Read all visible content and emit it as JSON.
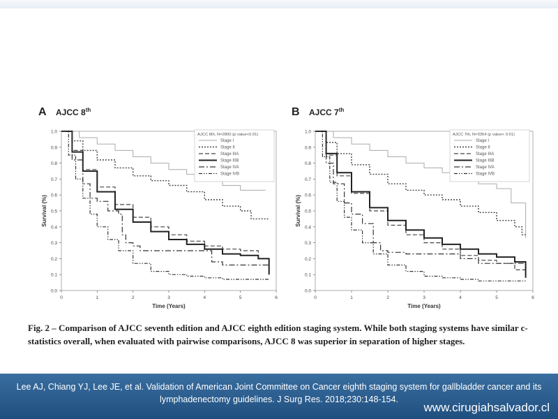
{
  "chart_data": [
    {
      "type": "line",
      "panel_letter": "A",
      "title": "AJCC 8",
      "title_superscript": "th",
      "xlabel": "Time (Years)",
      "ylabel": "Survival (%)",
      "xlim": [
        0,
        6
      ],
      "ylim": [
        0.0,
        1.0
      ],
      "xticks": [
        "0",
        "1",
        "2",
        "3",
        "4",
        "5",
        "6"
      ],
      "yticks": [
        "0.0",
        "0.1",
        "0.2",
        "0.3",
        "0.4",
        "0.5",
        "0.6",
        "0.7",
        "0.8",
        "0.9",
        "1.0"
      ],
      "legend_title": "AJCC 8th, N=2800 (p value<0.01)",
      "legend_position": "top-right",
      "series": [
        {
          "name": "Stage I",
          "style": "solid-light",
          "points": [
            [
              0,
              1.0
            ],
            [
              0.5,
              0.96
            ],
            [
              1,
              0.92
            ],
            [
              1.5,
              0.88
            ],
            [
              2,
              0.84
            ],
            [
              2.5,
              0.8
            ],
            [
              3,
              0.76
            ],
            [
              3.5,
              0.73
            ],
            [
              4,
              0.71
            ],
            [
              4.5,
              0.66
            ],
            [
              5,
              0.63
            ],
            [
              5.7,
              0.63
            ]
          ]
        },
        {
          "name": "Stage II",
          "style": "dotted",
          "points": [
            [
              0,
              1.0
            ],
            [
              0.3,
              0.94
            ],
            [
              0.6,
              0.88
            ],
            [
              1,
              0.82
            ],
            [
              1.5,
              0.77
            ],
            [
              2,
              0.72
            ],
            [
              2.5,
              0.69
            ],
            [
              3,
              0.66
            ],
            [
              3.5,
              0.62
            ],
            [
              4,
              0.57
            ],
            [
              4.5,
              0.53
            ],
            [
              5,
              0.5
            ],
            [
              5.3,
              0.45
            ],
            [
              5.8,
              0.45
            ]
          ]
        },
        {
          "name": "Stage IIIA",
          "style": "dashed",
          "points": [
            [
              0,
              1.0
            ],
            [
              0.3,
              0.88
            ],
            [
              0.6,
              0.76
            ],
            [
              1,
              0.65
            ],
            [
              1.5,
              0.54
            ],
            [
              2,
              0.46
            ],
            [
              2.5,
              0.4
            ],
            [
              3,
              0.35
            ],
            [
              3.5,
              0.31
            ],
            [
              4,
              0.28
            ],
            [
              4.5,
              0.26
            ],
            [
              5,
              0.25
            ],
            [
              5.5,
              0.2
            ],
            [
              5.8,
              0.2
            ]
          ]
        },
        {
          "name": "Stage IIIB",
          "style": "solid-bold",
          "points": [
            [
              0,
              1.0
            ],
            [
              0.3,
              0.87
            ],
            [
              0.6,
              0.75
            ],
            [
              1,
              0.62
            ],
            [
              1.5,
              0.51
            ],
            [
              2,
              0.43
            ],
            [
              2.5,
              0.37
            ],
            [
              3,
              0.32
            ],
            [
              3.5,
              0.29
            ],
            [
              4,
              0.26
            ],
            [
              4.5,
              0.23
            ],
            [
              5,
              0.22
            ],
            [
              5.5,
              0.2
            ],
            [
              5.8,
              0.1
            ]
          ]
        },
        {
          "name": "Stage IVA",
          "style": "dash-dot",
          "points": [
            [
              0,
              1.0
            ],
            [
              0.3,
              0.82
            ],
            [
              0.6,
              0.67
            ],
            [
              0.8,
              0.58
            ],
            [
              1,
              0.56
            ],
            [
              1.3,
              0.5
            ],
            [
              1.6,
              0.48
            ],
            [
              1.7,
              0.35
            ],
            [
              1.8,
              0.3
            ],
            [
              2,
              0.28
            ],
            [
              2.2,
              0.25
            ],
            [
              2.8,
              0.25
            ],
            [
              3.5,
              0.25
            ],
            [
              4,
              0.25
            ],
            [
              4.2,
              0.18
            ],
            [
              4.5,
              0.16
            ],
            [
              5,
              0.16
            ],
            [
              5.5,
              0.16
            ],
            [
              5.8,
              0.16
            ]
          ]
        },
        {
          "name": "Stage IVB",
          "style": "dash-dot-dot",
          "points": [
            [
              0,
              1.0
            ],
            [
              0.2,
              0.85
            ],
            [
              0.4,
              0.7
            ],
            [
              0.6,
              0.58
            ],
            [
              0.8,
              0.48
            ],
            [
              1,
              0.4
            ],
            [
              1.3,
              0.32
            ],
            [
              1.6,
              0.25
            ],
            [
              2,
              0.17
            ],
            [
              2.5,
              0.12
            ],
            [
              3,
              0.1
            ],
            [
              3.5,
              0.09
            ],
            [
              4,
              0.08
            ],
            [
              4.5,
              0.07
            ],
            [
              5,
              0.07
            ],
            [
              5.8,
              0.07
            ]
          ]
        }
      ]
    },
    {
      "type": "line",
      "panel_letter": "B",
      "title": "AJCC 7",
      "title_superscript": "th",
      "xlabel": "Time (Years)",
      "ylabel": "Survival (%)",
      "xlim": [
        0,
        6
      ],
      "ylim": [
        0.0,
        1.0
      ],
      "xticks": [
        "0",
        "1",
        "2",
        "3",
        "4",
        "5",
        "6"
      ],
      "yticks": [
        "0.0",
        "0.1",
        "0.2",
        "0.3",
        "0.4",
        "0.5",
        "0.6",
        "0.7",
        "0.8",
        "0.9",
        "1.0"
      ],
      "legend_title": "AJCC 7th, N=3354 (p value< 0.01)",
      "legend_position": "top-right",
      "series": [
        {
          "name": "Stage I",
          "style": "solid-light",
          "points": [
            [
              0,
              1.0
            ],
            [
              0.5,
              0.96
            ],
            [
              1,
              0.92
            ],
            [
              1.5,
              0.88
            ],
            [
              2,
              0.84
            ],
            [
              2.5,
              0.8
            ],
            [
              3,
              0.77
            ],
            [
              3.5,
              0.74
            ],
            [
              4,
              0.7
            ],
            [
              4.5,
              0.67
            ],
            [
              5,
              0.64
            ],
            [
              5.4,
              0.55
            ],
            [
              5.8,
              0.33
            ]
          ]
        },
        {
          "name": "Stage II",
          "style": "dotted",
          "points": [
            [
              0,
              1.0
            ],
            [
              0.3,
              0.93
            ],
            [
              0.6,
              0.86
            ],
            [
              1,
              0.79
            ],
            [
              1.5,
              0.73
            ],
            [
              2,
              0.67
            ],
            [
              2.5,
              0.63
            ],
            [
              3,
              0.6
            ],
            [
              3.5,
              0.57
            ],
            [
              4,
              0.53
            ],
            [
              4.5,
              0.49
            ],
            [
              5,
              0.44
            ],
            [
              5.5,
              0.4
            ],
            [
              5.7,
              0.35
            ],
            [
              5.8,
              0.35
            ]
          ]
        },
        {
          "name": "Stage IIIA",
          "style": "dashed",
          "points": [
            [
              0,
              1.0
            ],
            [
              0.3,
              0.85
            ],
            [
              0.6,
              0.72
            ],
            [
              1,
              0.61
            ],
            [
              1.5,
              0.5
            ],
            [
              2,
              0.41
            ],
            [
              2.5,
              0.35
            ],
            [
              3,
              0.3
            ],
            [
              3.5,
              0.26
            ],
            [
              4,
              0.22
            ],
            [
              4.5,
              0.19
            ],
            [
              5,
              0.17
            ],
            [
              5.5,
              0.13
            ],
            [
              5.8,
              0.13
            ]
          ]
        },
        {
          "name": "Stage IIIB",
          "style": "solid-bold",
          "points": [
            [
              0,
              1.0
            ],
            [
              0.3,
              0.86
            ],
            [
              0.6,
              0.74
            ],
            [
              1,
              0.62
            ],
            [
              1.5,
              0.52
            ],
            [
              2,
              0.44
            ],
            [
              2.5,
              0.38
            ],
            [
              3,
              0.33
            ],
            [
              3.5,
              0.29
            ],
            [
              4,
              0.26
            ],
            [
              4.5,
              0.23
            ],
            [
              5,
              0.21
            ],
            [
              5.5,
              0.18
            ],
            [
              5.8,
              0.08
            ]
          ]
        },
        {
          "name": "Stage IVA",
          "style": "dash-dot",
          "points": [
            [
              0,
              1.0
            ],
            [
              0.3,
              0.8
            ],
            [
              0.5,
              0.67
            ],
            [
              0.8,
              0.55
            ],
            [
              1,
              0.48
            ],
            [
              1.3,
              0.42
            ],
            [
              1.6,
              0.3
            ],
            [
              1.8,
              0.25
            ],
            [
              2,
              0.24
            ],
            [
              2.5,
              0.23
            ],
            [
              3,
              0.23
            ],
            [
              3.5,
              0.23
            ],
            [
              4,
              0.2
            ],
            [
              4.5,
              0.17
            ],
            [
              5,
              0.17
            ],
            [
              5.5,
              0.17
            ],
            [
              5.8,
              0.17
            ]
          ]
        },
        {
          "name": "Stage IVB",
          "style": "dash-dot-dot",
          "points": [
            [
              0,
              1.0
            ],
            [
              0.2,
              0.84
            ],
            [
              0.4,
              0.68
            ],
            [
              0.6,
              0.56
            ],
            [
              0.8,
              0.46
            ],
            [
              1,
              0.38
            ],
            [
              1.3,
              0.3
            ],
            [
              1.6,
              0.23
            ],
            [
              2,
              0.16
            ],
            [
              2.5,
              0.12
            ],
            [
              3,
              0.09
            ],
            [
              3.5,
              0.08
            ],
            [
              4,
              0.07
            ],
            [
              4.5,
              0.06
            ],
            [
              5,
              0.06
            ],
            [
              5.8,
              0.06
            ]
          ]
        }
      ]
    }
  ],
  "caption": "Fig. 2 – Comparison of AJCC seventh edition and AJCC eighth edition staging system. While both staging systems have similar c-statistics overall, when evaluated with pairwise comparisons, AJCC 8 was superior in separation of higher stages.",
  "footer": {
    "citation": "Lee AJ, Chiang YJ, Lee JE, et al. Validation of American Joint Committee  on Cancer eighth staging system for gallbladder cancer and its lymphadenectomy guidelines. J Surg Res. 2018;230:148-154.",
    "website": "www.cirugiahsalvador.cl"
  },
  "colors": {
    "footer_bg": "#2a5d8f",
    "line": "#333333",
    "stage_i_line": "#aaaaaa"
  }
}
